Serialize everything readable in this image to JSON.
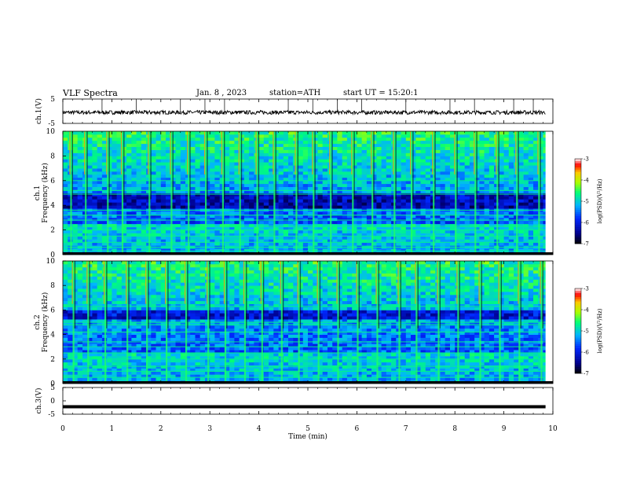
{
  "header": {
    "title": "VLF Spectra",
    "date": "Jan. 8 , 2023",
    "station": "station=ATH",
    "start_time": "start UT = 15:20:1"
  },
  "chart_data": [
    {
      "type": "line",
      "name": "ch1-waveform",
      "ylabel": "ch.1(V)",
      "ylim": [
        -5,
        5
      ],
      "yticks": [
        "5",
        "-5"
      ],
      "baseline": -0.5,
      "noise_amplitude": 0.8,
      "spike_times_min": [
        0.8,
        1.5,
        2.4,
        2.9,
        3.3,
        4.6,
        5.1,
        5.6,
        6.1,
        7.0,
        7.9,
        8.4,
        9.2,
        9.6
      ]
    },
    {
      "type": "heatmap",
      "name": "ch1-spectrogram",
      "ylabel": "ch.1 Frequency (kHz)",
      "ylim": [
        0,
        10
      ],
      "yticks": [
        "0",
        "2",
        "4",
        "6",
        "8",
        "10"
      ],
      "colorbar": {
        "label": "log(PSD)(V²/Hz)",
        "range": [
          -7,
          -3
        ],
        "ticks": [
          "-3",
          "-4",
          "-5",
          "-6",
          "-7"
        ]
      },
      "dark_band_khz": [
        3.8,
        5.0
      ],
      "bright_lines_khz": [
        0.3,
        0.6,
        1.0,
        1.5,
        2.0,
        2.3,
        2.8,
        3.2,
        3.6,
        4.9,
        5.2,
        6.0
      ],
      "sferic_times_min": [
        0.15,
        0.45,
        0.9,
        1.2,
        1.75,
        2.2,
        2.55,
        2.9,
        3.25,
        3.6,
        3.95,
        4.3,
        4.75,
        5.1,
        5.45,
        5.9,
        6.3,
        6.75,
        7.1,
        7.55,
        8.0,
        8.4,
        8.85,
        9.25,
        9.7
      ]
    },
    {
      "type": "heatmap",
      "name": "ch2-spectrogram",
      "ylabel": "ch.2 Frequency (kHz)",
      "ylim": [
        0,
        10
      ],
      "yticks": [
        "0",
        "2",
        "4",
        "6",
        "8",
        "10"
      ],
      "colorbar": {
        "label": "log(PSD)(V²/Hz)",
        "range": [
          -7,
          -3
        ],
        "ticks": [
          "-3",
          "-4",
          "-5",
          "-6",
          "-7"
        ]
      },
      "dark_band_khz": [
        5.2,
        6.0
      ],
      "bright_lines_khz": [
        0.5,
        1.0,
        1.4,
        2.0,
        2.5,
        3.0,
        3.4,
        4.2,
        4.8,
        5.0,
        6.3
      ],
      "sferic_times_min": [
        0.2,
        0.5,
        0.85,
        1.3,
        1.7,
        2.1,
        2.5,
        2.95,
        3.3,
        3.7,
        4.05,
        4.45,
        4.8,
        5.2,
        5.6,
        6.0,
        6.4,
        6.85,
        7.2,
        7.65,
        8.05,
        8.5,
        8.9,
        9.3,
        9.75
      ]
    },
    {
      "type": "line",
      "name": "ch3-waveform",
      "ylabel": "ch.3(V)",
      "ylim": [
        -5,
        5
      ],
      "yticks": [
        "5",
        "0",
        "-5"
      ],
      "baseline": -2.2
    }
  ],
  "x_axis": {
    "label": "Time (min)",
    "range": [
      0,
      10
    ],
    "data_end": 9.85,
    "ticks": [
      "0",
      "1",
      "2",
      "3",
      "4",
      "5",
      "6",
      "7",
      "8",
      "9",
      "10"
    ]
  },
  "colors": {
    "axis": "#000000",
    "trace": "#000000",
    "background": "#ffffff"
  }
}
